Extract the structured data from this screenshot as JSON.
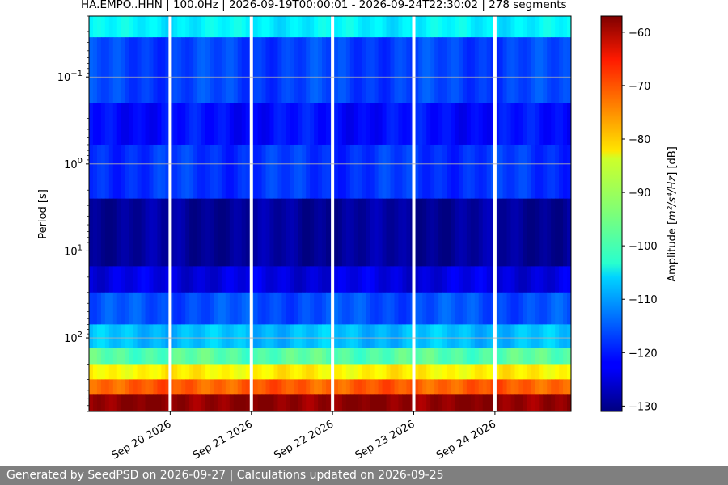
{
  "title": "HA.EMPO..HHN | 100.0Hz | 2026-09-19T00:00:01 - 2026-09-24T22:30:02 | 278 segments",
  "footer": "Generated by SeedPSD on 2026-09-27 | Calculations updated on 2026-09-25",
  "chart_data": {
    "type": "heatmap",
    "ylabel": "Period [s]",
    "y_scale": "log",
    "y_inverted": true,
    "ylim": [
      0.02,
      700
    ],
    "y_ticks": [
      {
        "value": 0.1,
        "base": "10",
        "exp": "−1"
      },
      {
        "value": 1,
        "base": "10",
        "exp": "0"
      },
      {
        "value": 10,
        "base": "10",
        "exp": "1"
      },
      {
        "value": 100,
        "base": "10",
        "exp": "2"
      }
    ],
    "x_start": "2026-09-19T00:00:01",
    "x_end": "2026-09-24T22:30:02",
    "x_ticks": [
      "Sep 20 2026",
      "Sep 21 2026",
      "Sep 22 2026",
      "Sep 23 2026",
      "Sep 24 2026"
    ],
    "x_tick_dates": [
      "2026-09-20",
      "2026-09-21",
      "2026-09-22",
      "2026-09-23",
      "2026-09-24"
    ],
    "grid": true,
    "colormap": "jet",
    "colorbar": {
      "label_prefix": "Amplitude [",
      "label_math": "m²/s⁴/Hz",
      "label_suffix": "] [dB]",
      "range": [
        -131,
        -57
      ],
      "ticks": [
        "−60",
        "−70",
        "−80",
        "−90",
        "−100",
        "−110",
        "−120",
        "−130"
      ],
      "tick_values": [
        -60,
        -70,
        -80,
        -90,
        -100,
        -110,
        -120,
        -130
      ]
    },
    "data_gaps": [
      "2026-09-20",
      "2026-09-21",
      "2026-09-22",
      "2026-09-23",
      "2026-09-24"
    ],
    "band_levels_db": [
      {
        "period_from": 0.02,
        "period_to": 0.035,
        "db": -104
      },
      {
        "period_from": 0.035,
        "period_to": 0.2,
        "db": -117
      },
      {
        "period_from": 0.2,
        "period_to": 0.6,
        "db": -121
      },
      {
        "period_from": 0.6,
        "period_to": 2.5,
        "db": -118
      },
      {
        "period_from": 2.5,
        "period_to": 15,
        "db": -129
      },
      {
        "period_from": 15,
        "period_to": 30,
        "db": -124
      },
      {
        "period_from": 30,
        "period_to": 70,
        "db": -116
      },
      {
        "period_from": 70,
        "period_to": 130,
        "db": -108
      },
      {
        "period_from": 130,
        "period_to": 200,
        "db": -97
      },
      {
        "period_from": 200,
        "period_to": 300,
        "db": -84
      },
      {
        "period_from": 300,
        "period_to": 450,
        "db": -73
      },
      {
        "period_from": 450,
        "period_to": 700,
        "db": -58
      }
    ]
  }
}
